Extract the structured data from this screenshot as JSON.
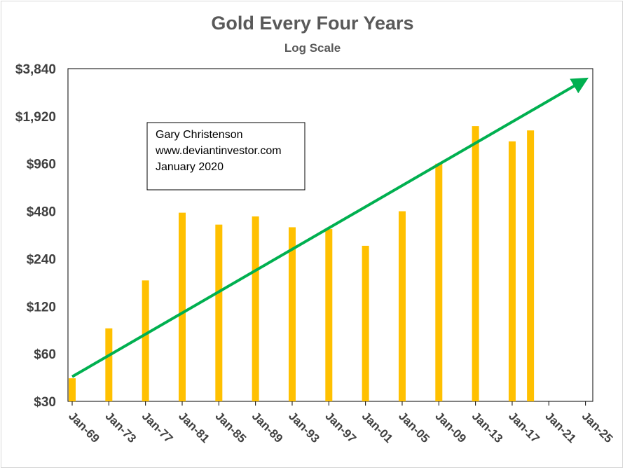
{
  "chart_data": {
    "type": "bar",
    "title": "Gold Every Four Years",
    "subtitle": "Log Scale",
    "y_scale": "log",
    "ylim": [
      30,
      3840
    ],
    "y_ticks": [
      30,
      60,
      120,
      240,
      480,
      960,
      1920,
      3840
    ],
    "y_tick_labels": [
      "$30",
      "$60",
      "$120",
      "$240",
      "$480",
      "$960",
      "$1,920",
      "$3,840"
    ],
    "categories": [
      "Jan-69",
      "Jan-73",
      "Jan-77",
      "Jan-81",
      "Jan-85",
      "Jan-89",
      "Jan-93",
      "Jan-97",
      "Jan-01",
      "Jan-05",
      "Jan-09",
      "Jan-13",
      "Jan-17",
      "Jan-21",
      "Jan-25"
    ],
    "values": [
      42,
      87,
      175,
      470,
      395,
      445,
      380,
      370,
      290,
      480,
      960,
      1660,
      1330,
      1560,
      null
    ],
    "bar_dates": [
      1969.0,
      1973.0,
      1977.0,
      1981.0,
      1985.0,
      1989.0,
      1993.0,
      1997.0,
      2001.0,
      2005.0,
      2009.0,
      2013.0,
      2017.0,
      2019.0
    ],
    "bar_color": "#ffc000",
    "trend": {
      "color": "#00b050",
      "start": {
        "x": 1969.0,
        "y": 43
      },
      "end": {
        "x": 2025.0,
        "y": 3300
      }
    },
    "annotation": {
      "lines": [
        "Gary Christenson",
        "www.deviantinvestor.com",
        "January 2020"
      ]
    },
    "grid": false,
    "legend": "none"
  }
}
